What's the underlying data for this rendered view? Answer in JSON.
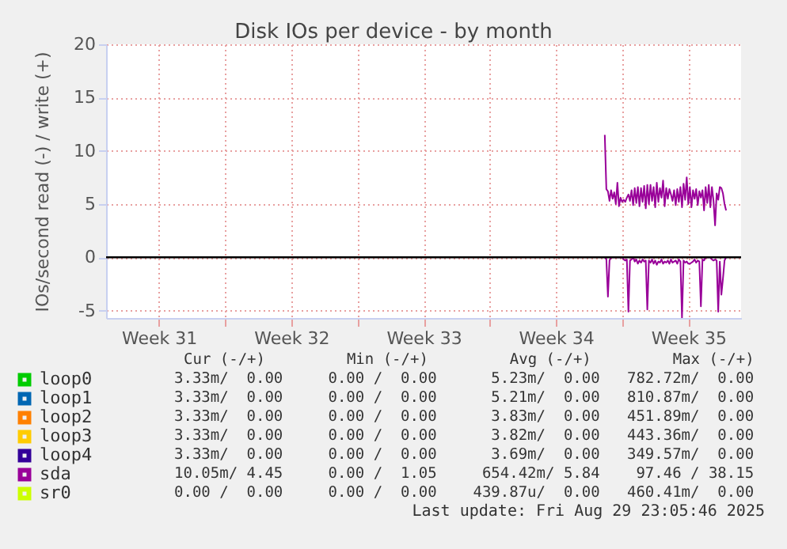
{
  "chart_data": {
    "type": "line",
    "title": "Disk IOs per device - by month",
    "ylabel": "IOs/second read (-) / write (+)",
    "xlim": [
      "2025-07-27T17:00",
      "2025-08-30T07:00"
    ],
    "xticks": [
      {
        "value": "2025-07-30T12:00",
        "label": "Week 31"
      },
      {
        "value": "2025-08-03",
        "label": null
      },
      {
        "value": "2025-08-06T12:00",
        "label": "Week 32"
      },
      {
        "value": "2025-08-10",
        "label": null
      },
      {
        "value": "2025-08-13T12:00",
        "label": "Week 33"
      },
      {
        "value": "2025-08-17",
        "label": null
      },
      {
        "value": "2025-08-20T12:00",
        "label": "Week 34"
      },
      {
        "value": "2025-08-24",
        "label": null
      },
      {
        "value": "2025-08-27T12:00",
        "label": "Week 35"
      }
    ],
    "ylim": [
      -5.7,
      20
    ],
    "yticks": [
      -5,
      0,
      5,
      10,
      15,
      20
    ],
    "grid": true,
    "legend": "bottom",
    "x": [
      "2025-08-23T02:00",
      "2025-08-23T04:00",
      "2025-08-23T06:00",
      "2025-08-23T08:00",
      "2025-08-23T10:00",
      "2025-08-23T12:00",
      "2025-08-23T14:00",
      "2025-08-23T16:00",
      "2025-08-23T18:00",
      "2025-08-23T20:00",
      "2025-08-23T22:00",
      "2025-08-24T00:00",
      "2025-08-24T02:00",
      "2025-08-24T04:00",
      "2025-08-24T06:00",
      "2025-08-24T08:00",
      "2025-08-24T10:00",
      "2025-08-24T12:00",
      "2025-08-24T14:00",
      "2025-08-24T16:00",
      "2025-08-24T18:00",
      "2025-08-24T20:00",
      "2025-08-24T22:00",
      "2025-08-25T00:00",
      "2025-08-25T02:00",
      "2025-08-25T04:00",
      "2025-08-25T06:00",
      "2025-08-25T08:00",
      "2025-08-25T10:00",
      "2025-08-25T12:00",
      "2025-08-25T14:00",
      "2025-08-25T16:00",
      "2025-08-25T18:00",
      "2025-08-25T20:00",
      "2025-08-25T22:00",
      "2025-08-26T00:00",
      "2025-08-26T02:00",
      "2025-08-26T04:00",
      "2025-08-26T06:00",
      "2025-08-26T08:00",
      "2025-08-26T10:00",
      "2025-08-26T12:00",
      "2025-08-26T14:00",
      "2025-08-26T16:00",
      "2025-08-26T18:00",
      "2025-08-26T20:00",
      "2025-08-26T22:00",
      "2025-08-27T00:00",
      "2025-08-27T02:00",
      "2025-08-27T04:00",
      "2025-08-27T06:00",
      "2025-08-27T08:00",
      "2025-08-27T10:00",
      "2025-08-27T12:00",
      "2025-08-27T14:00",
      "2025-08-27T16:00",
      "2025-08-27T18:00",
      "2025-08-27T20:00",
      "2025-08-27T22:00",
      "2025-08-28T00:00",
      "2025-08-28T02:00",
      "2025-08-28T04:00",
      "2025-08-28T06:00",
      "2025-08-28T08:00",
      "2025-08-28T10:00",
      "2025-08-28T12:00",
      "2025-08-28T14:00",
      "2025-08-28T16:00",
      "2025-08-28T18:00",
      "2025-08-28T20:00",
      "2025-08-28T22:00",
      "2025-08-29T00:00",
      "2025-08-29T02:00",
      "2025-08-29T04:00",
      "2025-08-29T06:00",
      "2025-08-29T08:00",
      "2025-08-29T10:00",
      "2025-08-29T12:00"
    ],
    "series": [
      {
        "name": "loop0",
        "color": "#00cc00",
        "values": [
          null,
          null,
          null,
          null,
          null,
          null,
          null,
          null,
          null,
          null,
          null,
          null,
          null,
          null,
          null,
          null,
          null,
          null,
          null,
          null,
          null,
          null,
          null,
          null,
          null,
          null,
          null,
          null,
          null,
          null,
          null,
          null,
          null,
          null,
          null,
          null,
          null,
          null,
          null,
          null,
          null,
          null,
          null,
          null,
          null,
          null,
          null,
          null,
          null,
          null,
          null,
          null,
          null,
          null,
          null,
          null,
          null,
          null,
          null,
          null,
          null,
          null,
          null,
          null,
          null,
          null,
          null,
          null,
          null,
          null,
          null,
          null,
          null,
          null,
          null,
          null,
          null,
          null
        ]
      },
      {
        "name": "loop1",
        "color": "#0066b3",
        "values": [
          null,
          null,
          null,
          null,
          null,
          null,
          null,
          null,
          null,
          null,
          null,
          null,
          null,
          null,
          null,
          null,
          null,
          null,
          null,
          null,
          null,
          null,
          null,
          null,
          null,
          null,
          null,
          null,
          null,
          null,
          null,
          null,
          null,
          null,
          null,
          null,
          null,
          null,
          null,
          null,
          null,
          null,
          null,
          null,
          null,
          null,
          null,
          null,
          null,
          null,
          null,
          null,
          null,
          null,
          null,
          null,
          null,
          null,
          null,
          null,
          null,
          null,
          null,
          null,
          null,
          null,
          null,
          null,
          null,
          null,
          null,
          null,
          null,
          null,
          null,
          null,
          null,
          null
        ]
      },
      {
        "name": "loop2",
        "color": "#ff8000",
        "values": [
          null,
          null,
          null,
          null,
          null,
          null,
          null,
          null,
          null,
          null,
          null,
          null,
          null,
          null,
          null,
          null,
          null,
          null,
          null,
          null,
          null,
          null,
          null,
          null,
          null,
          null,
          null,
          null,
          null,
          null,
          null,
          null,
          null,
          null,
          null,
          null,
          null,
          null,
          null,
          null,
          null,
          null,
          null,
          null,
          null,
          null,
          null,
          null,
          null,
          null,
          null,
          null,
          null,
          null,
          null,
          null,
          null,
          null,
          null,
          null,
          null,
          null,
          null,
          null,
          null,
          null,
          null,
          null,
          null,
          null,
          null,
          null,
          null,
          null,
          null,
          null,
          null,
          null
        ]
      },
      {
        "name": "loop3",
        "color": "#ffcc00",
        "values": [
          null,
          null,
          null,
          null,
          null,
          null,
          null,
          null,
          null,
          null,
          null,
          null,
          null,
          null,
          null,
          null,
          null,
          null,
          null,
          null,
          null,
          null,
          null,
          null,
          null,
          null,
          null,
          null,
          null,
          null,
          null,
          null,
          null,
          null,
          null,
          null,
          null,
          null,
          null,
          null,
          null,
          null,
          null,
          null,
          null,
          null,
          null,
          null,
          null,
          null,
          null,
          null,
          null,
          null,
          null,
          null,
          null,
          null,
          null,
          null,
          null,
          null,
          null,
          null,
          null,
          null,
          null,
          null,
          null,
          null,
          null,
          null,
          null,
          null,
          null,
          null,
          null,
          null
        ]
      },
      {
        "name": "loop4",
        "color": "#330099",
        "values": [
          null,
          null,
          null,
          null,
          null,
          null,
          null,
          null,
          null,
          null,
          null,
          null,
          null,
          null,
          null,
          null,
          null,
          null,
          null,
          null,
          null,
          null,
          null,
          null,
          null,
          null,
          null,
          null,
          null,
          null,
          null,
          null,
          null,
          null,
          null,
          null,
          null,
          null,
          null,
          null,
          null,
          null,
          null,
          null,
          null,
          null,
          null,
          null,
          null,
          null,
          null,
          null,
          null,
          null,
          null,
          null,
          null,
          null,
          null,
          null,
          null,
          null,
          null,
          null,
          null,
          null,
          null,
          null,
          null,
          null,
          null,
          null,
          null,
          null,
          null,
          null,
          null,
          null
        ]
      },
      {
        "name": "sda",
        "color": "#990099",
        "values": [
          11.5,
          6.4,
          6.2,
          5.3,
          6.3,
          5.5,
          6.1,
          5.0,
          7.0,
          4.8,
          5.6,
          5.2,
          5.4,
          5.2,
          5.6,
          5.9,
          5.3,
          6.3,
          4.9,
          6.5,
          5.1,
          6.6,
          4.8,
          6.5,
          5.2,
          6.7,
          4.6,
          6.8,
          5.0,
          6.8,
          5.3,
          6.6,
          4.7,
          7.0,
          5.2,
          6.5,
          5.6,
          7.2,
          4.8,
          6.5,
          5.5,
          6.4,
          5.9,
          5.3,
          6.3,
          4.9,
          6.4,
          5.2,
          6.6,
          4.7,
          6.9,
          5.4,
          7.5,
          5.0,
          6.6,
          4.7,
          6.3,
          5.5,
          6.4,
          4.9,
          6.2,
          5.6,
          6.3,
          4.4,
          6.6,
          5.1,
          6.8,
          4.7,
          6.6,
          5.3,
          3.0,
          6.0,
          5.4,
          6.6,
          6.5,
          6.0,
          5.0,
          4.4
        ]
      },
      {
        "color": "#990099",
        "values": [
          0,
          -0.2,
          -3.7,
          -0.3,
          0,
          0,
          0,
          0,
          0,
          0,
          0,
          0,
          -0.2,
          -0.3,
          -0.2,
          -5.1,
          -0.3,
          -0.2,
          0,
          -0.4,
          -0.2,
          -0.6,
          -0.3,
          -0.5,
          -0.2,
          -0.4,
          -0.3,
          -4.9,
          -0.3,
          -0.5,
          -0.2,
          -0.6,
          -0.3,
          -0.7,
          -0.4,
          -0.5,
          -0.2,
          -0.6,
          -0.4,
          -0.5,
          -0.3,
          -0.6,
          -0.2,
          -0.5,
          -0.4,
          -0.3,
          -0.6,
          -0.2,
          -0.4,
          -5.7,
          -0.3,
          -0.5,
          -0.4,
          -0.6,
          -0.6,
          -0.5,
          -0.4,
          -0.2,
          -0.5,
          -0.3,
          -0.4,
          -4.6,
          -0.2,
          -0.3,
          0,
          0,
          0,
          0,
          -0.2,
          -0.3,
          -0.2,
          -0.3,
          -5.1,
          -0.4,
          -3.5,
          -2.0,
          -0.3,
          0
        ]
      },
      {
        "name": "sr0",
        "color": "#ccff00",
        "values": [
          null,
          null,
          null,
          null,
          null,
          null,
          null,
          null,
          null,
          null,
          null,
          null,
          null,
          null,
          null,
          null,
          null,
          null,
          null,
          null,
          null,
          null,
          null,
          null,
          null,
          null,
          null,
          null,
          null,
          null,
          null,
          null,
          null,
          null,
          null,
          null,
          null,
          null,
          null,
          null,
          null,
          null,
          null,
          null,
          null,
          null,
          null,
          null,
          null,
          null,
          null,
          null,
          null,
          null,
          null,
          null,
          null,
          null,
          null,
          null,
          null,
          null,
          null,
          null,
          null,
          null,
          null,
          null,
          null,
          null,
          null,
          null,
          null,
          null,
          null,
          null,
          null,
          null
        ]
      }
    ],
    "ref_lines": [
      {
        "axis": "y",
        "value": 0,
        "color": "#000000"
      }
    ],
    "annotations": [
      "Cur (-/+)         Min (-/+)         Avg (-/+)         Max (-/+)",
      "3.33m/  0.00     0.00 /  0.00      5.23m/  0.00   782.72m/  0.00",
      "3.33m/  0.00     0.00 /  0.00      5.21m/  0.00   810.87m/  0.00",
      "3.33m/  0.00     0.00 /  0.00      3.83m/  0.00   451.89m/  0.00",
      "3.33m/  0.00     0.00 /  0.00      3.82m/  0.00   443.36m/  0.00",
      "3.33m/  0.00     0.00 /  0.00      3.69m/  0.00   349.57m/  0.00",
      "10.05m/ 4.45     0.00 /  1.05     654.42m/ 5.84    97.46 / 38.15",
      "0.00 /  0.00     0.00 /  0.00    439.87u/  0.00   460.41m/  0.00",
      "Last update: Fri Aug 29 23:05:46 2025"
    ]
  }
}
